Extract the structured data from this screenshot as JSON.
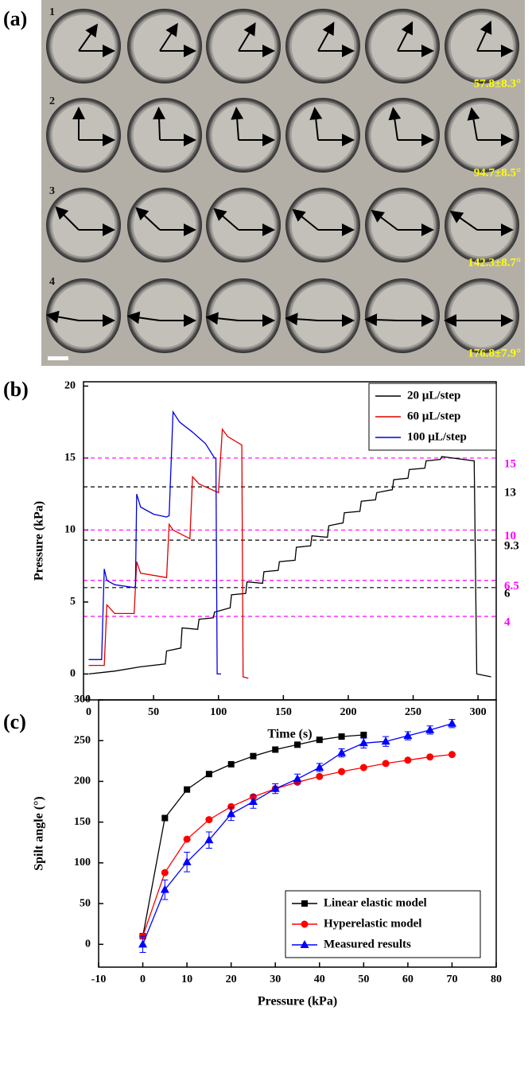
{
  "panel_a": {
    "label": "(a)",
    "rows": [
      "1",
      "2",
      "3",
      "4"
    ],
    "angles": [
      "57.8±8.3°",
      "94.7±8.5°",
      "142.3±8.7°",
      "176.8±7.9°"
    ]
  },
  "chart_data": [
    {
      "type": "line",
      "label": "(b)",
      "x_label": "Time (s)",
      "y_label": "Pressure (kPa)",
      "xlim": [
        -4,
        314
      ],
      "xticks": [
        0,
        50,
        100,
        150,
        200,
        250,
        300
      ],
      "ylim": [
        -1.8,
        20.3
      ],
      "yticks": [
        0,
        5,
        10,
        15,
        20
      ],
      "legend": "upper right",
      "reference_lines": [
        {
          "value": 15,
          "color": "#ff00ff"
        },
        {
          "value": 13,
          "color": "#000000"
        },
        {
          "value": 10,
          "color": "#ff00ff"
        },
        {
          "value": 9.3,
          "color": "#000000"
        },
        {
          "value": 6.5,
          "color": "#ff00ff"
        },
        {
          "value": 6,
          "color": "#000000"
        },
        {
          "value": 4,
          "color": "#ff00ff"
        }
      ],
      "series": [
        {
          "name": "20 µL/step",
          "color": "#000000",
          "x": [
            0,
            20,
            40,
            59,
            60,
            71,
            72,
            84,
            85,
            96,
            97,
            109,
            110,
            121,
            122,
            134,
            135,
            146,
            147,
            159,
            160,
            171,
            172,
            184,
            185,
            196,
            197,
            209,
            210,
            221,
            222,
            234,
            235,
            246,
            247,
            259,
            260,
            271,
            272,
            297,
            299,
            310
          ],
          "values": [
            0,
            0.2,
            0.5,
            0.7,
            1.6,
            1.8,
            3.2,
            3.1,
            3.8,
            3.9,
            4.3,
            4.6,
            5.5,
            5.6,
            6.4,
            6.3,
            7.1,
            7.2,
            7.8,
            7.9,
            8.8,
            8.9,
            9.6,
            9.5,
            10.3,
            10.5,
            11.2,
            11.3,
            12.0,
            12.1,
            12.6,
            12.8,
            13.5,
            13.6,
            14.2,
            14.3,
            14.8,
            14.9,
            15.1,
            14.8,
            0,
            -0.2
          ]
        },
        {
          "name": "60 µL/step",
          "color": "#e00000",
          "x": [
            0,
            12,
            14,
            20,
            35,
            37,
            40,
            60,
            62,
            65,
            78,
            80,
            85,
            100,
            103,
            107,
            118,
            119,
            123
          ],
          "values": [
            0.6,
            0.6,
            4.8,
            4.2,
            4.2,
            7.8,
            7,
            6.7,
            10.4,
            10,
            9.4,
            13.7,
            13.2,
            12.6,
            17,
            16.5,
            15.9,
            -0.2,
            -0.3
          ]
        },
        {
          "name": "100 µL/step",
          "color": "#0000e0",
          "x": [
            0,
            10,
            12,
            14,
            20,
            35,
            36,
            37,
            40,
            50,
            60,
            62,
            65,
            70,
            80,
            90,
            97,
            98,
            99,
            102
          ],
          "values": [
            1,
            1,
            7.3,
            6.5,
            6.2,
            6,
            6.1,
            12.5,
            11.6,
            11.1,
            10.9,
            11,
            18.2,
            17.5,
            16.8,
            16,
            15,
            15,
            0,
            0
          ]
        }
      ]
    },
    {
      "type": "line",
      "label": "(c)",
      "x_label": "Pressure (kPa)",
      "y_label": "Spilt angle (°)",
      "xlim": [
        -10,
        80
      ],
      "xticks": [
        -10,
        0,
        10,
        20,
        30,
        40,
        50,
        60,
        70,
        80
      ],
      "ylim": [
        -28,
        300
      ],
      "yticks": [
        0,
        50,
        100,
        150,
        200,
        250,
        300
      ],
      "legend": "lower right",
      "series": [
        {
          "name": "Linear elastic model",
          "color": "#000000",
          "marker": "square",
          "x": [
            0,
            5,
            10,
            15,
            20,
            25,
            30,
            35,
            40,
            45,
            50
          ],
          "values": [
            10,
            155,
            190,
            209,
            221,
            231,
            239,
            245,
            251,
            255,
            257
          ]
        },
        {
          "name": "Hyperelastic model",
          "color": "#ff0000",
          "marker": "circle",
          "x": [
            0,
            5,
            10,
            15,
            20,
            25,
            30,
            35,
            40,
            45,
            50,
            55,
            60,
            65,
            70
          ],
          "values": [
            10,
            88,
            129,
            153,
            169,
            181,
            191,
            199,
            206,
            212,
            217,
            222,
            226,
            230,
            233
          ]
        },
        {
          "name": "Measured results",
          "color": "#0000ff",
          "marker": "triangle",
          "x": [
            0,
            5,
            10,
            15,
            20,
            25,
            30,
            35,
            40,
            45,
            50,
            55,
            60,
            65,
            70
          ],
          "values": [
            0,
            67,
            101,
            128,
            160,
            175,
            191,
            203,
            217,
            235,
            247,
            249,
            256,
            263,
            271
          ],
          "errors": [
            10,
            12,
            12,
            10,
            8,
            8,
            6,
            6,
            5,
            5,
            6,
            6,
            5,
            5,
            5
          ]
        }
      ]
    }
  ]
}
